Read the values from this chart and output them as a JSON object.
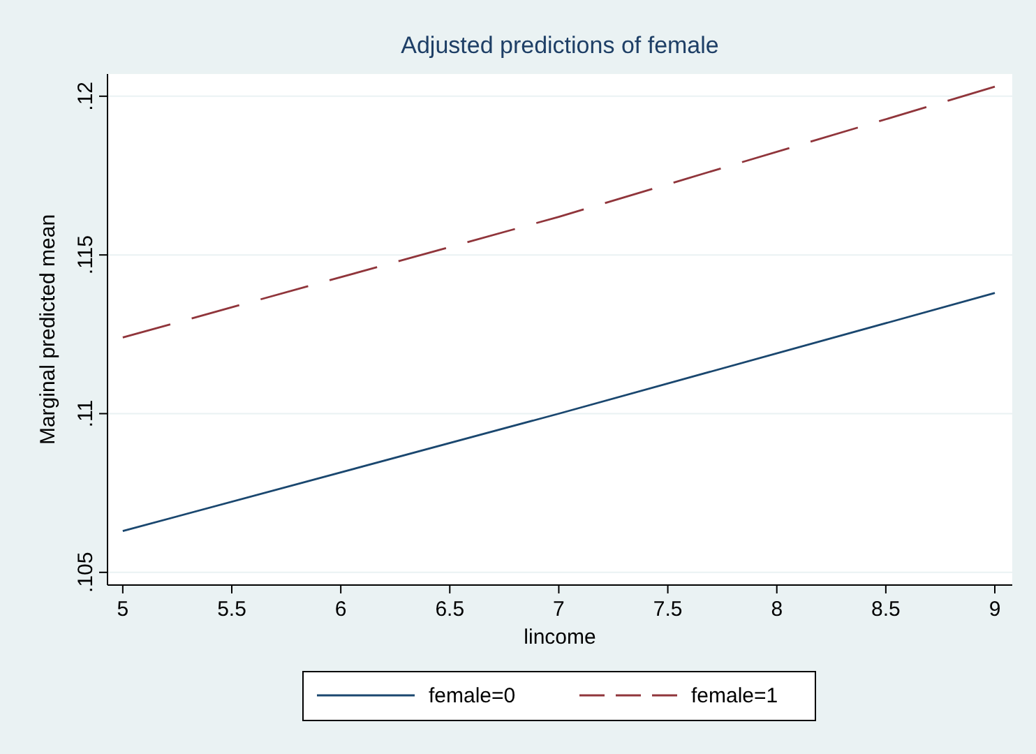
{
  "chart_data": {
    "type": "line",
    "title": "Adjusted predictions of female",
    "xlabel": "lincome",
    "ylabel": "Marginal predicted mean",
    "series": [
      {
        "name": "female=0",
        "color": "#1a476f",
        "x": [
          5,
          7,
          9
        ],
        "values": [
          0.1063,
          0.11,
          0.1138
        ],
        "line_style": "solid"
      },
      {
        "name": "female=1",
        "color": "#90353b",
        "x": [
          5,
          7,
          9
        ],
        "values": [
          0.1124,
          0.1162,
          0.1203
        ],
        "line_style": "dashed"
      }
    ],
    "xlim": [
      4.93,
      9.08
    ],
    "xticks": [
      5,
      5.5,
      6,
      6.5,
      7,
      7.5,
      8,
      8.5,
      9
    ],
    "ylim": [
      0.1046,
      0.1207
    ],
    "yticks": [
      {
        "value": 0.105,
        "label": ".105"
      },
      {
        "value": 0.11,
        "label": ".11"
      },
      {
        "value": 0.115,
        "label": ".115"
      },
      {
        "value": 0.12,
        "label": ".12"
      }
    ],
    "grid": "y",
    "legend": "bottom",
    "marker": "none"
  }
}
